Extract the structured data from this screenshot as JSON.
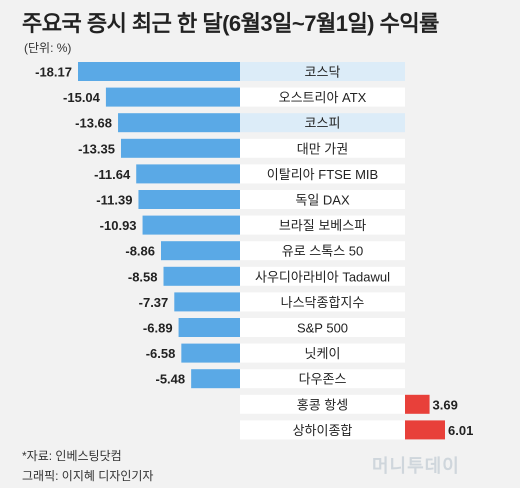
{
  "title": "주요국 증시 최근 한 달(6월3일~7월1일) 수익률",
  "unit": "(단위: %)",
  "source": "*자료: 인베스팅닷컴",
  "credit": "그래픽: 이지혜 디자인기자",
  "watermark": "머니투데이",
  "colors": {
    "negative": "#5aa9e6",
    "positive": "#e8403a",
    "highlight_label": "#dcecf8",
    "label_box": "#ffffff"
  },
  "chart_data": {
    "type": "bar",
    "orientation": "horizontal",
    "title": "주요국 증시 최근 한 달(6월3일~7월1일) 수익률",
    "unit": "(단위: %)",
    "categories": [
      "코스닥",
      "오스트리아 ATX",
      "코스피",
      "대만 가권",
      "이탈리아 FTSE MIB",
      "독일 DAX",
      "브라질 보베스파",
      "유로 스톡스 50",
      "사우디아라비아 Tadawul",
      "나스닥종합지수",
      "S&P 500",
      "닛케이",
      "다우존스",
      "홍콩 항셍",
      "상하이종합"
    ],
    "values": [
      -18.17,
      -15.04,
      -13.68,
      -13.35,
      -11.64,
      -11.39,
      -10.93,
      -8.86,
      -8.58,
      -7.37,
      -6.89,
      -6.58,
      -5.48,
      3.69,
      6.01
    ],
    "value_labels": [
      "-18.17",
      "-15.04",
      "-13.68",
      "-13.35",
      "-11.64",
      "-11.39",
      "-10.93",
      "-8.86",
      "-8.58",
      "-7.37",
      "-6.89",
      "-6.58",
      "-5.48",
      "3.69",
      "6.01"
    ],
    "highlighted": [
      "코스닥",
      "코스피"
    ],
    "xlim": [
      -18.17,
      6.01
    ]
  }
}
